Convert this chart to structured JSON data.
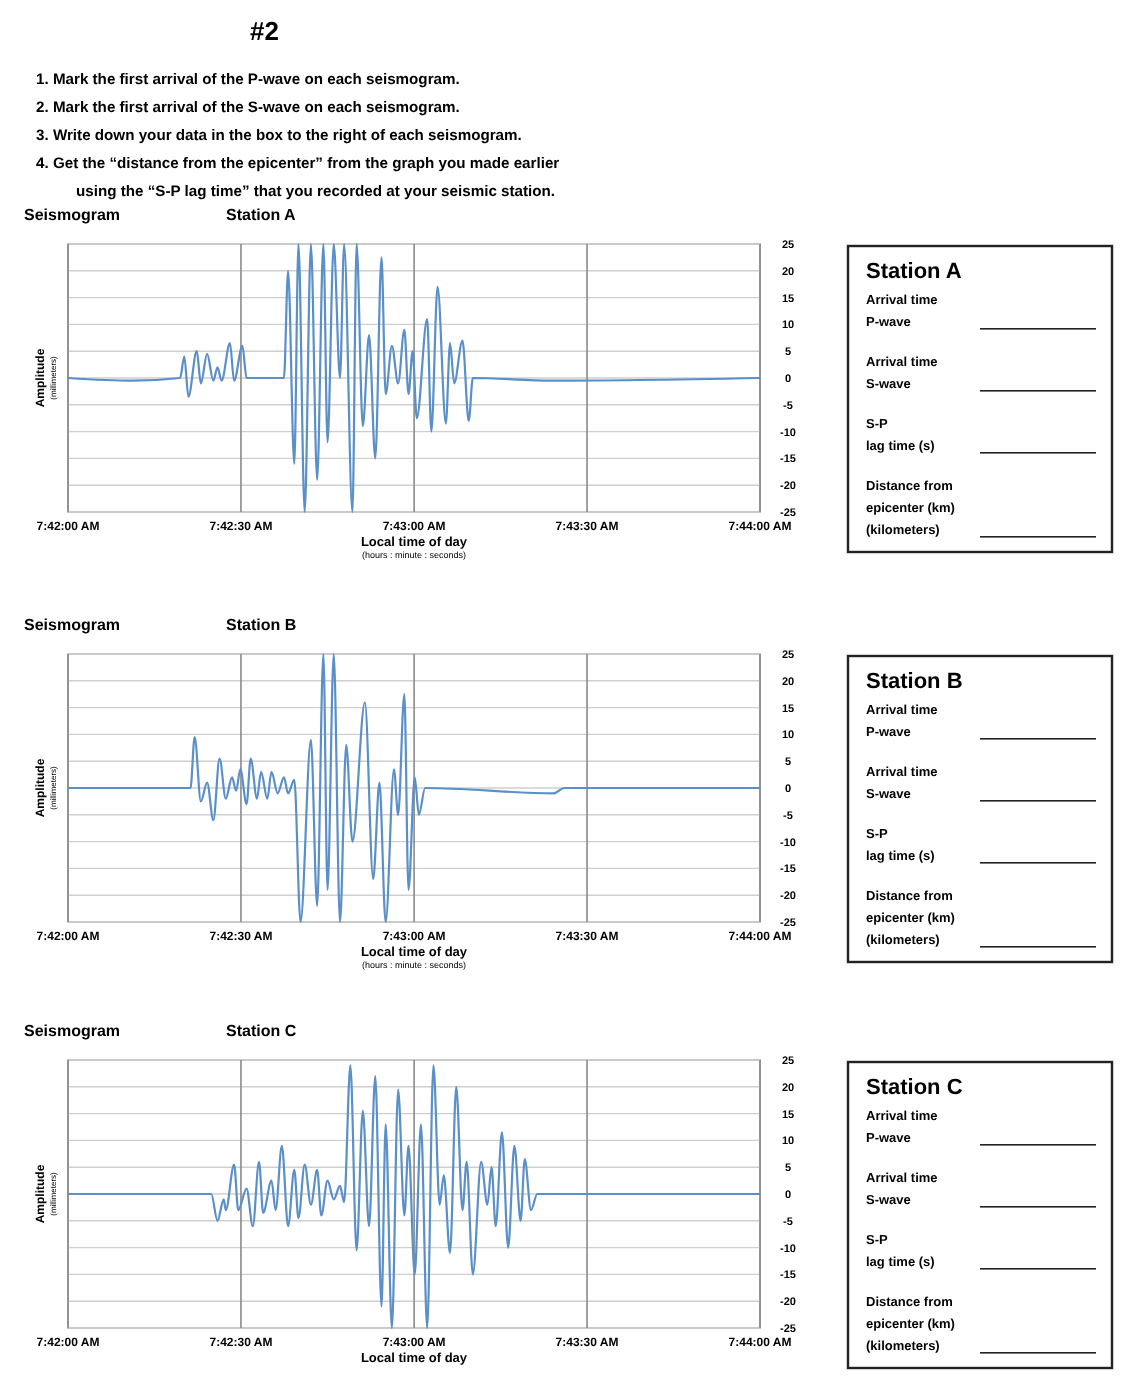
{
  "chart_data": [
    {
      "type": "other",
      "title": "#2",
      "annotations": [
        "1. Mark the first arrival of the P-wave on each seismogram.",
        "2. Mark the first arrival of the S-wave on each seismogram.",
        "3. Write down your data in the box to the right of each seismogram.",
        "4. Get the “distance from the epicenter” from the graph you made earlier\nusing the “S-P lag time” that you recorded at your seismic station."
      ]
    },
    {
      "type": "line",
      "title": "Seismogram",
      "subtitle": "Station A",
      "xlabel": "Local time of day\n(hours : minute : seconds)",
      "ylabel": "Amplitude\n(millimeters)",
      "series": [
        {
          "color": "#5b8fc7",
          "x": [
            7.7,
            7.7031,
            7.7054,
            7.7056,
            7.7058,
            7.7062,
            7.7064,
            7.7067,
            7.707,
            7.7072,
            7.7074,
            7.7078,
            7.708,
            7.7084,
            7.7086,
            7.7104,
            7.7106,
            7.7109,
            7.7111,
            7.7114,
            7.7117,
            7.712,
            7.7123,
            7.7125,
            7.7128,
            7.7131,
            7.7133,
            7.7137,
            7.7139,
            7.7142,
            7.7145,
            7.7148,
            7.7151,
            7.7153,
            7.7156,
            7.7159,
            7.7162,
            7.7164,
            7.7166,
            7.7168,
            7.7173,
            7.7175,
            7.7178,
            7.7182,
            7.7184,
            7.7186,
            7.719,
            7.7193,
            7.7195,
            7.7233,
            7.73333
          ],
          "values": [
            0,
            -0.5,
            0,
            4,
            -3.5,
            5,
            -1,
            4.5,
            -0.5,
            2,
            -0.5,
            6.5,
            -0.5,
            6,
            0,
            0,
            20,
            -16,
            25,
            -25,
            25,
            -19,
            25,
            -12,
            25,
            0,
            25,
            -25,
            25,
            -9,
            8,
            -15,
            22.5,
            -3,
            6,
            -1,
            9,
            -3,
            5,
            -7.5,
            11,
            -10,
            17,
            -8.5,
            6.5,
            -1,
            7,
            -8,
            0,
            -0.5,
            0
          ]
        }
      ],
      "xlim": [
        7.7,
        7.73333
      ],
      "xticks": [
        {
          "value": 7.7,
          "label": "7:42:00 AM"
        },
        {
          "value": 7.70833,
          "label": "7:42:30 AM"
        },
        {
          "value": 7.71667,
          "label": "7:43:00 AM"
        },
        {
          "value": 7.725,
          "label": "7:43:30 AM"
        },
        {
          "value": 7.73333,
          "label": "7:44:00 AM"
        }
      ],
      "ylim": [
        -25,
        25
      ],
      "yticks": [
        -25,
        -20,
        -15,
        -10,
        -5,
        0,
        5,
        10,
        15,
        20,
        25
      ],
      "grid": true
    },
    {
      "type": "other",
      "title": "Station A",
      "annotations": [
        "Arrival time\nP-wave",
        "Arrival time\nS-wave",
        "S-P\nlag time (s)",
        "Distance from\nepicenter (km)\n(kilometers)"
      ]
    },
    {
      "type": "line",
      "title": "Seismogram",
      "subtitle": "Station B",
      "xlabel": "Local time of day\n(hours : minute : seconds)",
      "ylabel": "Amplitude\n(millimeters)",
      "series": [
        {
          "color": "#5b8fc7",
          "x": [
            7.7,
            7.7059,
            7.7061,
            7.7064,
            7.7067,
            7.707,
            7.7073,
            7.7076,
            7.7079,
            7.7081,
            7.7083,
            7.7086,
            7.7088,
            7.7091,
            7.7093,
            7.7096,
            7.7098,
            7.7101,
            7.7104,
            7.7106,
            7.7109,
            7.7112,
            7.7117,
            7.712,
            7.7123,
            7.7125,
            7.7128,
            7.7131,
            7.7134,
            7.7137,
            7.7143,
            7.7147,
            7.715,
            7.7153,
            7.7157,
            7.7159,
            7.7162,
            7.7164,
            7.7167,
            7.7169,
            7.7172,
            7.7234,
            7.7239,
            7.73333
          ],
          "values": [
            0,
            0,
            9.5,
            -2.5,
            1,
            -6,
            5.5,
            -2,
            2,
            -0.5,
            3.5,
            -3,
            5.5,
            -2,
            3,
            -2,
            3,
            -1,
            2,
            -1,
            1.5,
            -25,
            9,
            -22,
            25,
            -19,
            25,
            -25,
            8,
            -10,
            16,
            -17,
            1,
            -25,
            3.5,
            -5,
            17.5,
            -19,
            2,
            -5,
            0,
            -1,
            0,
            0
          ]
        }
      ],
      "xlim": [
        7.7,
        7.73333
      ],
      "xticks": [
        {
          "value": 7.7,
          "label": "7:42:00 AM"
        },
        {
          "value": 7.70833,
          "label": "7:42:30 AM"
        },
        {
          "value": 7.71667,
          "label": "7:43:00 AM"
        },
        {
          "value": 7.725,
          "label": "7:43:30 AM"
        },
        {
          "value": 7.73333,
          "label": "7:44:00 AM"
        }
      ],
      "ylim": [
        -25,
        25
      ],
      "yticks": [
        -25,
        -20,
        -15,
        -10,
        -5,
        0,
        5,
        10,
        15,
        20,
        25
      ],
      "grid": true
    },
    {
      "type": "other",
      "title": "Station B",
      "annotations": [
        "Arrival time\nP-wave",
        "Arrival time\nS-wave",
        "S-P\nlag time (s)",
        "Distance from\nepicenter (km)\n(kilometers)"
      ]
    },
    {
      "type": "line",
      "title": "Seismogram",
      "subtitle": "Station C",
      "xlabel": "Local time of day",
      "ylabel": "Amplitude\n(millimeters)",
      "series": [
        {
          "color": "#5b8fc7",
          "x": [
            7.7,
            7.7069,
            7.7072,
            7.7075,
            7.7076,
            7.708,
            7.7082,
            7.7086,
            7.7089,
            7.7092,
            7.7094,
            7.7098,
            7.71,
            7.7103,
            7.7106,
            7.7109,
            7.7111,
            7.7114,
            7.7117,
            7.712,
            7.7122,
            7.7125,
            7.7128,
            7.7131,
            7.7133,
            7.7136,
            7.7139,
            7.7142,
            7.7145,
            7.7148,
            7.7151,
            7.7153,
            7.7156,
            7.7159,
            7.7162,
            7.7164,
            7.7167,
            7.717,
            7.7173,
            7.7176,
            7.7179,
            7.7181,
            7.7184,
            7.7187,
            7.719,
            7.7192,
            7.7195,
            7.7199,
            7.7202,
            7.7204,
            7.7206,
            7.7209,
            7.7212,
            7.7215,
            7.7218,
            7.722,
            7.7223,
            7.7226,
            7.73333
          ],
          "values": [
            0,
            0,
            -5,
            -1,
            -3,
            5.5,
            -3,
            1,
            -6,
            6,
            -3.5,
            2.5,
            -3,
            9,
            -6,
            4.5,
            -4.5,
            5.5,
            -2,
            4.5,
            -4,
            2.5,
            -1,
            1.5,
            -1.5,
            24,
            -10.5,
            15.5,
            -6,
            22,
            -21,
            13,
            -25,
            19.5,
            -4,
            9,
            -15,
            13,
            -25,
            24,
            -2,
            3.5,
            -11,
            20,
            -3,
            6,
            -15,
            6,
            -2,
            5,
            -6,
            11.5,
            -10,
            9,
            -5,
            6.5,
            -3,
            0,
            0
          ]
        }
      ],
      "xlim": [
        7.7,
        7.73333
      ],
      "xticks": [
        {
          "value": 7.7,
          "label": "7:42:00 AM"
        },
        {
          "value": 7.70833,
          "label": "7:42:30 AM"
        },
        {
          "value": 7.71667,
          "label": "7:43:00 AM"
        },
        {
          "value": 7.725,
          "label": "7:43:30 AM"
        },
        {
          "value": 7.73333,
          "label": "7:44:00 AM"
        }
      ],
      "ylim": [
        -25,
        25
      ],
      "yticks": [
        -25,
        -20,
        -15,
        -10,
        -5,
        0,
        5,
        10,
        15,
        20,
        25
      ],
      "grid": true
    },
    {
      "type": "other",
      "title": "Station C",
      "annotations": [
        "Arrival time\nP-wave",
        "Arrival time\nS-wave",
        "S-P\nlag time (s)",
        "Distance from\nepicenter (km)\n(kilometers)"
      ]
    }
  ]
}
